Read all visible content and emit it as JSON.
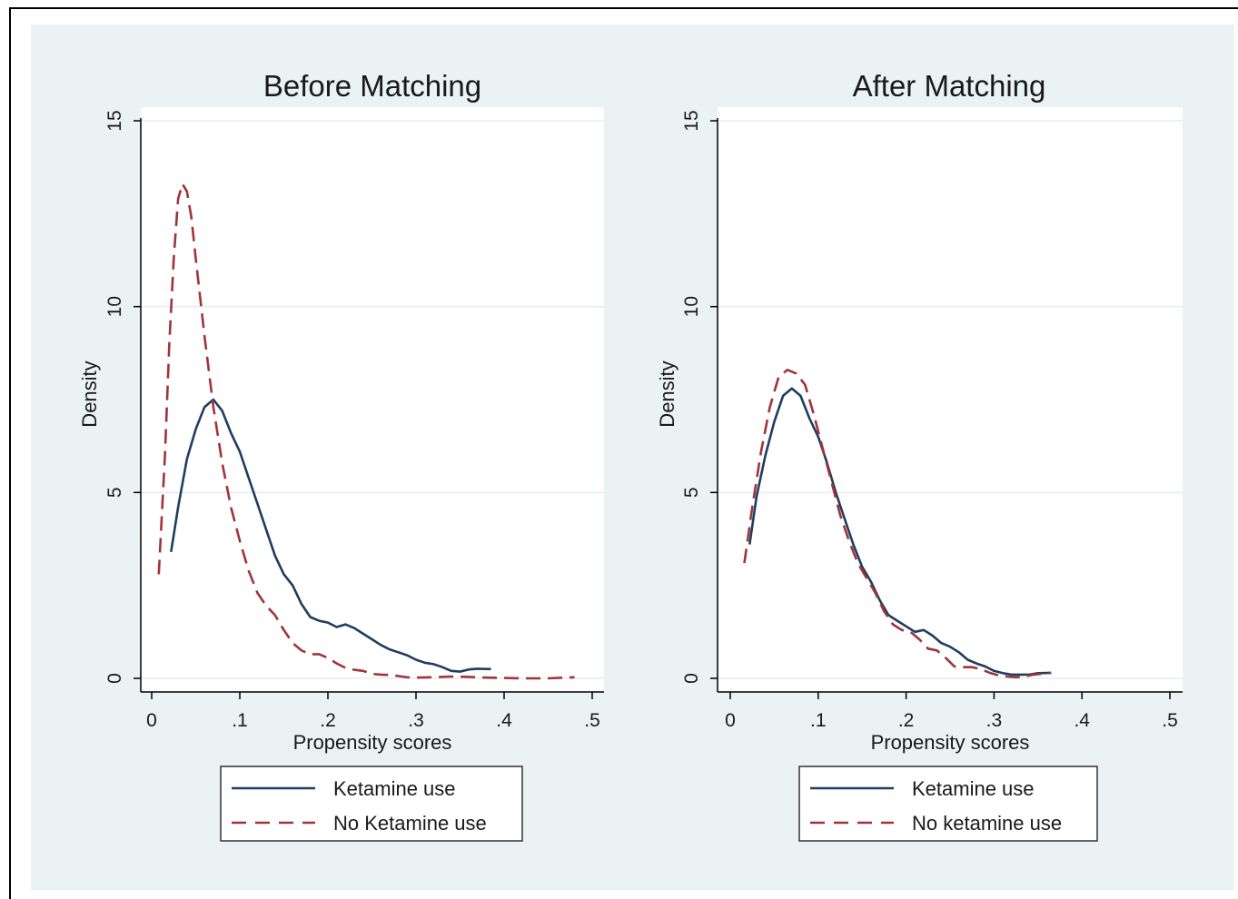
{
  "chart_data": [
    {
      "type": "line",
      "title": "Before Matching",
      "xlabel": "Propensity scores",
      "ylabel": "Density",
      "xlim": [
        0,
        0.5
      ],
      "ylim": [
        0,
        15
      ],
      "x_ticks": [
        "0",
        ".1",
        ".2",
        ".3",
        ".4",
        ".5"
      ],
      "y_ticks": [
        "0",
        "5",
        "10",
        "15"
      ],
      "grid": true,
      "legend_position": "bottom",
      "series": [
        {
          "name": "Ketamine use",
          "color": "#1f3d5e",
          "dash": "solid",
          "points": [
            [
              0.022,
              3.4
            ],
            [
              0.03,
              4.6
            ],
            [
              0.04,
              5.9
            ],
            [
              0.05,
              6.7
            ],
            [
              0.06,
              7.3
            ],
            [
              0.07,
              7.5
            ],
            [
              0.08,
              7.2
            ],
            [
              0.09,
              6.6
            ],
            [
              0.1,
              6.1
            ],
            [
              0.11,
              5.4
            ],
            [
              0.12,
              4.7
            ],
            [
              0.13,
              4.0
            ],
            [
              0.14,
              3.3
            ],
            [
              0.15,
              2.8
            ],
            [
              0.16,
              2.5
            ],
            [
              0.17,
              2.0
            ],
            [
              0.18,
              1.65
            ],
            [
              0.19,
              1.55
            ],
            [
              0.2,
              1.5
            ],
            [
              0.21,
              1.38
            ],
            [
              0.22,
              1.45
            ],
            [
              0.23,
              1.35
            ],
            [
              0.24,
              1.2
            ],
            [
              0.25,
              1.05
            ],
            [
              0.26,
              0.9
            ],
            [
              0.27,
              0.78
            ],
            [
              0.28,
              0.7
            ],
            [
              0.29,
              0.62
            ],
            [
              0.3,
              0.5
            ],
            [
              0.31,
              0.42
            ],
            [
              0.32,
              0.38
            ],
            [
              0.33,
              0.3
            ],
            [
              0.34,
              0.2
            ],
            [
              0.35,
              0.18
            ],
            [
              0.36,
              0.24
            ],
            [
              0.37,
              0.26
            ],
            [
              0.385,
              0.25
            ]
          ]
        },
        {
          "name": "No Ketamine use",
          "color": "#a0343a",
          "dash": "dashed",
          "points": [
            [
              0.008,
              2.8
            ],
            [
              0.015,
              6.0
            ],
            [
              0.02,
              9.0
            ],
            [
              0.025,
              11.3
            ],
            [
              0.03,
              12.9
            ],
            [
              0.035,
              13.3
            ],
            [
              0.04,
              13.1
            ],
            [
              0.045,
              12.4
            ],
            [
              0.05,
              11.3
            ],
            [
              0.06,
              9.2
            ],
            [
              0.07,
              7.3
            ],
            [
              0.08,
              5.8
            ],
            [
              0.09,
              4.6
            ],
            [
              0.1,
              3.7
            ],
            [
              0.11,
              2.9
            ],
            [
              0.12,
              2.3
            ],
            [
              0.13,
              1.95
            ],
            [
              0.14,
              1.7
            ],
            [
              0.15,
              1.3
            ],
            [
              0.16,
              0.95
            ],
            [
              0.17,
              0.75
            ],
            [
              0.18,
              0.65
            ],
            [
              0.19,
              0.65
            ],
            [
              0.2,
              0.55
            ],
            [
              0.21,
              0.4
            ],
            [
              0.22,
              0.28
            ],
            [
              0.23,
              0.23
            ],
            [
              0.24,
              0.2
            ],
            [
              0.25,
              0.12
            ],
            [
              0.26,
              0.1
            ],
            [
              0.27,
              0.09
            ],
            [
              0.28,
              0.06
            ],
            [
              0.29,
              0.03
            ],
            [
              0.3,
              0.02
            ],
            [
              0.32,
              0.03
            ],
            [
              0.34,
              0.05
            ],
            [
              0.36,
              0.04
            ],
            [
              0.38,
              0.02
            ],
            [
              0.4,
              0.01
            ],
            [
              0.42,
              0.0
            ],
            [
              0.45,
              0.0
            ],
            [
              0.48,
              0.03
            ]
          ]
        }
      ]
    },
    {
      "type": "line",
      "title": "After Matching",
      "xlabel": "Propensity scores",
      "ylabel": "Density",
      "xlim": [
        0,
        0.5
      ],
      "ylim": [
        0,
        15
      ],
      "x_ticks": [
        "0",
        ".1",
        ".2",
        ".3",
        ".4",
        ".5"
      ],
      "y_ticks": [
        "0",
        "5",
        "10",
        "15"
      ],
      "grid": true,
      "legend_position": "bottom",
      "series": [
        {
          "name": "Ketamine use",
          "color": "#1f3d5e",
          "dash": "solid",
          "points": [
            [
              0.022,
              3.6
            ],
            [
              0.03,
              4.9
            ],
            [
              0.04,
              6.0
            ],
            [
              0.05,
              6.9
            ],
            [
              0.06,
              7.6
            ],
            [
              0.07,
              7.8
            ],
            [
              0.08,
              7.6
            ],
            [
              0.09,
              7.0
            ],
            [
              0.1,
              6.5
            ],
            [
              0.11,
              5.8
            ],
            [
              0.12,
              5.0
            ],
            [
              0.13,
              4.3
            ],
            [
              0.14,
              3.6
            ],
            [
              0.15,
              3.0
            ],
            [
              0.16,
              2.6
            ],
            [
              0.17,
              2.1
            ],
            [
              0.18,
              1.7
            ],
            [
              0.19,
              1.55
            ],
            [
              0.2,
              1.4
            ],
            [
              0.21,
              1.25
            ],
            [
              0.22,
              1.3
            ],
            [
              0.23,
              1.15
            ],
            [
              0.24,
              0.95
            ],
            [
              0.25,
              0.85
            ],
            [
              0.26,
              0.7
            ],
            [
              0.27,
              0.5
            ],
            [
              0.28,
              0.4
            ],
            [
              0.29,
              0.32
            ],
            [
              0.3,
              0.2
            ],
            [
              0.31,
              0.14
            ],
            [
              0.32,
              0.1
            ],
            [
              0.33,
              0.1
            ],
            [
              0.34,
              0.1
            ],
            [
              0.35,
              0.14
            ],
            [
              0.365,
              0.15
            ]
          ]
        },
        {
          "name": "No ketamine use",
          "color": "#a0343a",
          "dash": "dashed",
          "points": [
            [
              0.016,
              3.1
            ],
            [
              0.025,
              4.6
            ],
            [
              0.035,
              6.1
            ],
            [
              0.045,
              7.3
            ],
            [
              0.055,
              8.1
            ],
            [
              0.065,
              8.3
            ],
            [
              0.075,
              8.2
            ],
            [
              0.085,
              7.9
            ],
            [
              0.095,
              7.1
            ],
            [
              0.105,
              6.2
            ],
            [
              0.115,
              5.3
            ],
            [
              0.125,
              4.4
            ],
            [
              0.135,
              3.7
            ],
            [
              0.145,
              3.1
            ],
            [
              0.155,
              2.7
            ],
            [
              0.165,
              2.3
            ],
            [
              0.175,
              1.8
            ],
            [
              0.185,
              1.45
            ],
            [
              0.195,
              1.3
            ],
            [
              0.205,
              1.25
            ],
            [
              0.215,
              1.05
            ],
            [
              0.225,
              0.8
            ],
            [
              0.235,
              0.75
            ],
            [
              0.245,
              0.55
            ],
            [
              0.255,
              0.32
            ],
            [
              0.265,
              0.3
            ],
            [
              0.275,
              0.3
            ],
            [
              0.285,
              0.25
            ],
            [
              0.295,
              0.15
            ],
            [
              0.305,
              0.08
            ],
            [
              0.315,
              0.05
            ],
            [
              0.325,
              0.03
            ],
            [
              0.335,
              0.05
            ],
            [
              0.345,
              0.1
            ],
            [
              0.365,
              0.15
            ]
          ]
        }
      ]
    }
  ]
}
